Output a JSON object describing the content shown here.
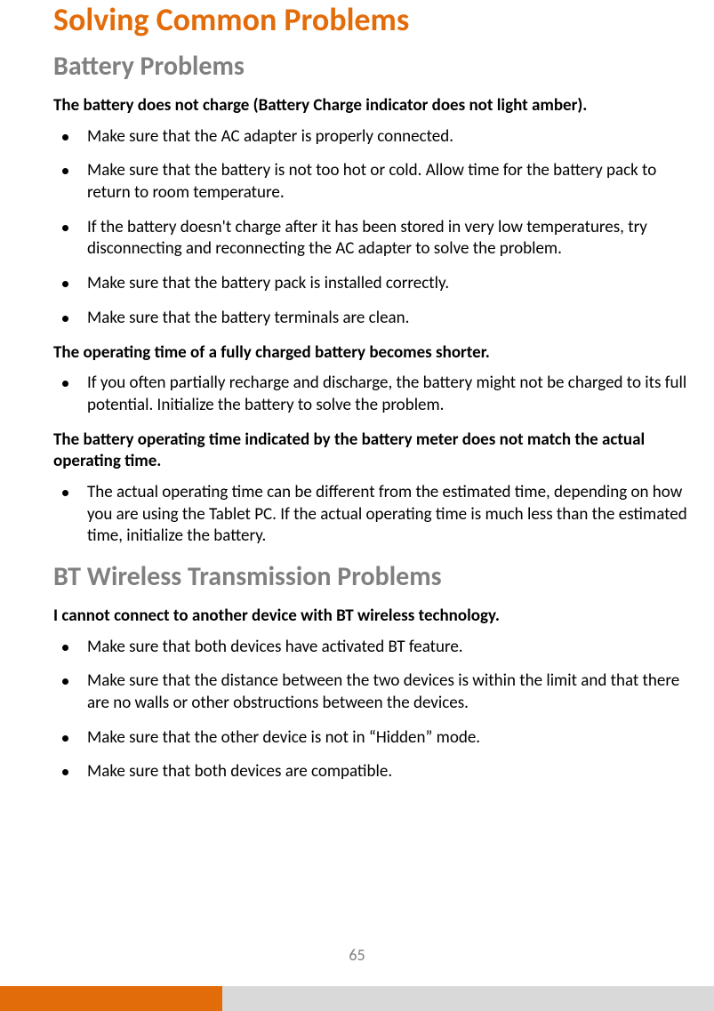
{
  "colors": {
    "accent": "#e36c0a",
    "heading_gray": "#808080",
    "text": "#000000",
    "page_number": "#808080",
    "footer_gray": "#d9d9d9",
    "background": "#ffffff"
  },
  "typography": {
    "h1_fontsize": 36,
    "h2_fontsize": 30,
    "body_fontsize": 19,
    "font_family": "Segoe UI"
  },
  "page_number": "65",
  "title": "Solving Common Problems",
  "sections": [
    {
      "heading": "Battery Problems",
      "problems": [
        {
          "title": "The battery does not charge (Battery Charge indicator does not light amber).",
          "items": [
            "Make sure that the AC adapter is properly connected.",
            "Make sure that the battery is not too hot or cold. Allow time for the battery pack to return to room temperature.",
            "If the battery doesn't charge after it has been stored in very low temperatures, try disconnecting and reconnecting the AC adapter to solve the problem.",
            "Make sure that the battery pack is installed correctly.",
            "Make sure that the battery terminals are clean."
          ]
        },
        {
          "title": "The operating time of a fully charged battery becomes shorter.",
          "items": [
            "If you often partially recharge and discharge, the battery might not be charged to its full potential. Initialize the battery to solve the problem."
          ]
        },
        {
          "title": "The battery operating time indicated by the battery meter does not match the actual operating time.",
          "items": [
            "The actual operating time can be different from the estimated time, depending on how you are using the Tablet PC. If the actual operating time is much less than the estimated time, initialize the battery."
          ]
        }
      ]
    },
    {
      "heading": "BT Wireless Transmission Problems",
      "problems": [
        {
          "title": "I cannot connect to another device with BT wireless technology.",
          "items": [
            "Make sure that both devices have activated BT feature.",
            "Make sure that the distance between the two devices is within the limit and that there are no walls or other obstructions between the devices.",
            "Make sure that the other device is not in “Hidden” mode.",
            "Make sure that both devices are compatible."
          ]
        }
      ]
    }
  ]
}
